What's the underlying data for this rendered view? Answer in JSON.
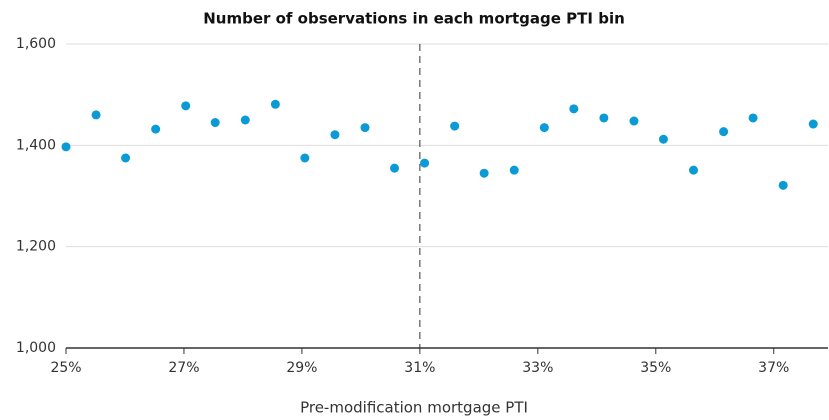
{
  "chart_data": {
    "type": "scatter",
    "title": "Number of observations in each mortgage PTI bin",
    "x_label": "Pre-modification mortgage PTI",
    "x": [
      25,
      25.51,
      26.01,
      26.52,
      27.03,
      27.53,
      28.04,
      28.55,
      29.05,
      29.56,
      30.07,
      30.57,
      31.08,
      31.59,
      32.09,
      32.6,
      33.11,
      33.61,
      34.12,
      34.63,
      35.13,
      35.64,
      36.15,
      36.65,
      37.16,
      37.67
    ],
    "values": [
      1397,
      1460,
      1375,
      1432,
      1478,
      1445,
      1450,
      1481,
      1375,
      1421,
      1435,
      1355,
      1365,
      1438,
      1345,
      1351,
      1435,
      1472,
      1454,
      1448,
      1412,
      1351,
      1427,
      1454,
      1321,
      1442
    ],
    "color": "#0a9ad6",
    "xlim": [
      25,
      37.92
    ],
    "xticks": [
      {
        "value": 25,
        "label": "25%"
      },
      {
        "value": 27,
        "label": "27%"
      },
      {
        "value": 29,
        "label": "29%"
      },
      {
        "value": 31,
        "label": "31%"
      },
      {
        "value": 33,
        "label": "33%"
      },
      {
        "value": 35,
        "label": "35%"
      },
      {
        "value": 37,
        "label": "37%"
      }
    ],
    "ylim": [
      1000,
      1600
    ],
    "yticks": [
      {
        "value": 1000,
        "label": "1,000"
      },
      {
        "value": 1200,
        "label": "1,200"
      },
      {
        "value": 1400,
        "label": "1,400"
      },
      {
        "value": 1600,
        "label": "1,600"
      }
    ],
    "reference_line_x": 31,
    "grid": true
  }
}
